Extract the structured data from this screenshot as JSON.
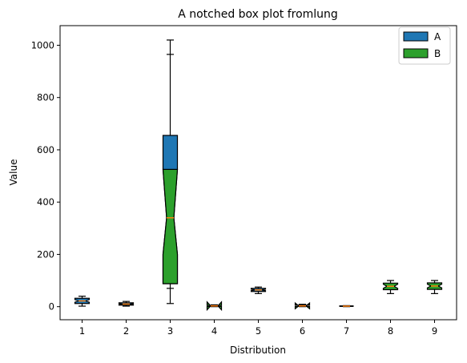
{
  "chart_data": {
    "type": "boxplot",
    "title": "A notched box plot fromlung",
    "xlabel": "Distribution",
    "ylabel": "Value",
    "ylim": [
      -50,
      1075
    ],
    "yticks": [
      0,
      200,
      400,
      600,
      800,
      1000
    ],
    "categories": [
      "1",
      "2",
      "3",
      "4",
      "5",
      "6",
      "7",
      "8",
      "9"
    ],
    "legend": {
      "placement": "top-right",
      "entries": [
        {
          "label": "A",
          "color": "#1f77b4"
        },
        {
          "label": "B",
          "color": "#2ca02c"
        }
      ]
    },
    "colors": {
      "A": "#1f77b4",
      "B": "#2ca02c",
      "median": "#ff7f0e"
    },
    "boxes": [
      {
        "category": "1",
        "series": "A",
        "whislo": 2,
        "q1": 12,
        "med": 22,
        "q3": 32,
        "whishi": 40,
        "notchlo": 17,
        "notchhi": 27
      },
      {
        "category": "2",
        "series": "A",
        "whislo": 2,
        "q1": 6,
        "med": 10,
        "q3": 15,
        "whishi": 20,
        "notchlo": 8,
        "notchhi": 12
      },
      {
        "category": "3",
        "series": "A",
        "whislo": 12,
        "q1": 88,
        "med": 340,
        "q3": 655,
        "whishi": 1020,
        "notchlo": 200,
        "notchhi": 525,
        "caps_inner": [
          70,
          965
        ]
      },
      {
        "category": "4",
        "series": "B",
        "whislo": 0,
        "q1": 1,
        "med": 3,
        "q3": 5,
        "whishi": 7,
        "notchlo": -12,
        "notchhi": 18
      },
      {
        "category": "5",
        "series": "A",
        "whislo": 50,
        "q1": 58,
        "med": 64,
        "q3": 70,
        "whishi": 75,
        "notchlo": 61,
        "notchhi": 67
      },
      {
        "category": "6",
        "series": "B",
        "whislo": 0,
        "q1": 1,
        "med": 3,
        "q3": 6,
        "whishi": 9,
        "notchlo": -8,
        "notchhi": 14
      },
      {
        "category": "7",
        "series": "A",
        "whislo": 0,
        "q1": 1,
        "med": 2,
        "q3": 3,
        "whishi": 4,
        "notchlo": 1,
        "notchhi": 3
      },
      {
        "category": "8",
        "series": "B",
        "whislo": 50,
        "q1": 65,
        "med": 78,
        "q3": 90,
        "whishi": 100,
        "notchlo": 70,
        "notchhi": 86
      },
      {
        "category": "9",
        "series": "B",
        "whislo": 50,
        "q1": 66,
        "med": 79,
        "q3": 91,
        "whishi": 100,
        "notchlo": 72,
        "notchhi": 86
      }
    ]
  }
}
